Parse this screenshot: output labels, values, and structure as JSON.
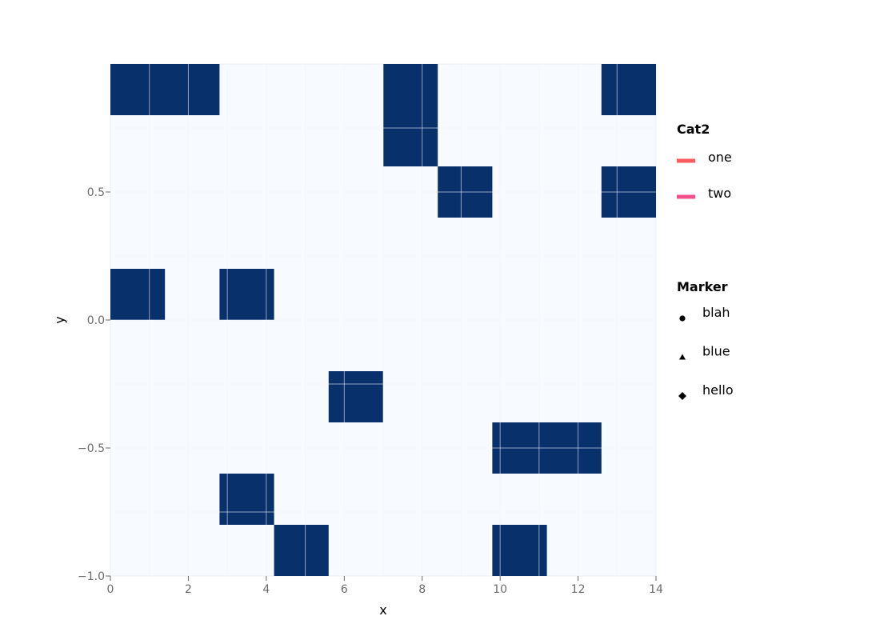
{
  "chart_data": {
    "type": "heatmap",
    "xlabel": "x",
    "ylabel": "y",
    "xlim": [
      0,
      14
    ],
    "ylim": [
      -1,
      1
    ],
    "x_ticks": [
      "0",
      "2",
      "4",
      "6",
      "8",
      "10",
      "12",
      "14"
    ],
    "y_ticks": [
      "−1.0",
      "−0.5",
      "0.0",
      "0.5"
    ],
    "grid": true,
    "background_color": "#f7fbff",
    "cell_color": "#08306b",
    "cells": [
      {
        "x0": 0,
        "x1": 2.8,
        "y0": 0.8,
        "y1": 1.0
      },
      {
        "x0": 7.0,
        "x1": 8.4,
        "y0": 0.6,
        "y1": 1.0
      },
      {
        "x0": 8.4,
        "x1": 9.8,
        "y0": 0.4,
        "y1": 0.6
      },
      {
        "x0": 12.6,
        "x1": 14.0,
        "y0": 0.8,
        "y1": 1.0
      },
      {
        "x0": 12.6,
        "x1": 14.0,
        "y0": 0.4,
        "y1": 0.6
      },
      {
        "x0": 0,
        "x1": 1.4,
        "y0": 0.0,
        "y1": 0.2
      },
      {
        "x0": 2.8,
        "x1": 4.2,
        "y0": 0.0,
        "y1": 0.2
      },
      {
        "x0": 5.6,
        "x1": 7.0,
        "y0": -0.4,
        "y1": -0.2
      },
      {
        "x0": 9.8,
        "x1": 12.6,
        "y0": -0.6,
        "y1": -0.4
      },
      {
        "x0": 2.8,
        "x1": 4.2,
        "y0": -0.8,
        "y1": -0.6
      },
      {
        "x0": 4.2,
        "x1": 5.6,
        "y0": -1.0,
        "y1": -0.8
      },
      {
        "x0": 9.8,
        "x1": 11.2,
        "y0": -1.0,
        "y1": -0.8
      }
    ],
    "legends": [
      {
        "title": "Cat2",
        "placement": "right",
        "items": [
          {
            "label": "one",
            "symbol": "line",
            "color": "#ff5a5f"
          },
          {
            "label": "two",
            "symbol": "line",
            "color": "#f5508c"
          }
        ]
      },
      {
        "title": "Marker",
        "placement": "right",
        "items": [
          {
            "label": "blah",
            "symbol": "circle",
            "color": "#000000"
          },
          {
            "label": "blue",
            "symbol": "triangle",
            "color": "#000000"
          },
          {
            "label": "hello",
            "symbol": "diamond",
            "color": "#000000"
          }
        ]
      }
    ]
  }
}
